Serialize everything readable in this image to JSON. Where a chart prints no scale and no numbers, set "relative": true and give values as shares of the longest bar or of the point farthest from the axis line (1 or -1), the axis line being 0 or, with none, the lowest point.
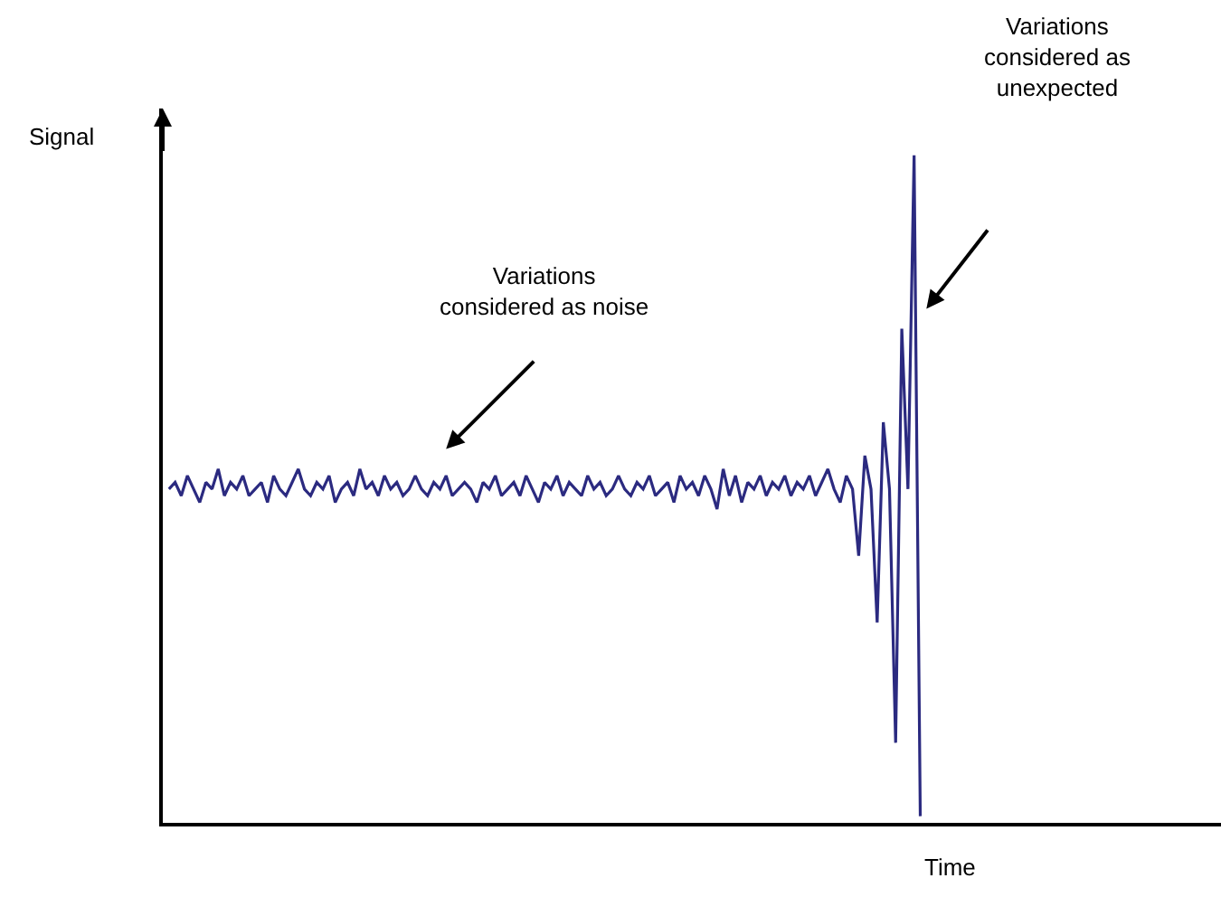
{
  "chart_data": {
    "type": "line",
    "relative": true,
    "xlabel": "Time",
    "ylabel": "Signal",
    "categories": [
      null,
      null,
      null,
      null,
      null,
      null,
      null,
      null,
      null,
      null,
      null,
      null,
      null,
      null,
      null,
      null,
      null,
      null,
      null,
      null,
      null,
      null,
      null,
      null,
      null,
      null,
      null,
      null,
      null,
      null,
      null,
      null,
      null,
      null,
      null,
      null,
      null,
      null,
      null,
      null,
      null,
      null,
      null,
      null,
      null,
      null,
      null,
      null,
      null,
      null,
      null,
      null,
      null,
      null,
      null,
      null,
      null,
      null,
      null,
      null,
      null,
      null,
      null,
      null,
      null,
      null,
      null,
      null,
      null,
      null,
      null,
      null,
      null,
      null,
      null,
      null,
      null,
      null,
      null,
      null,
      null,
      null,
      null,
      null,
      null,
      null,
      null,
      null,
      null,
      null,
      null,
      null,
      null,
      null,
      null,
      null,
      null,
      null,
      null,
      null,
      null,
      null,
      null,
      null,
      null,
      null,
      null,
      null,
      null,
      null,
      null,
      null,
      null,
      null,
      null,
      null,
      null,
      null,
      null,
      null,
      null,
      null,
      null
    ],
    "series": [
      {
        "color": "#2b2a80",
        "values": [
          0.5,
          0.51,
          0.49,
          0.52,
          0.5,
          0.48,
          0.51,
          0.5,
          0.53,
          0.49,
          0.51,
          0.5,
          0.52,
          0.49,
          0.5,
          0.51,
          0.48,
          0.52,
          0.5,
          0.49,
          0.51,
          0.53,
          0.5,
          0.49,
          0.51,
          0.5,
          0.52,
          0.48,
          0.5,
          0.51,
          0.49,
          0.53,
          0.5,
          0.51,
          0.49,
          0.52,
          0.5,
          0.51,
          0.49,
          0.5,
          0.52,
          0.5,
          0.49,
          0.51,
          0.5,
          0.52,
          0.49,
          0.5,
          0.51,
          0.5,
          0.48,
          0.51,
          0.5,
          0.52,
          0.49,
          0.5,
          0.51,
          0.49,
          0.52,
          0.5,
          0.48,
          0.51,
          0.5,
          0.52,
          0.49,
          0.51,
          0.5,
          0.49,
          0.52,
          0.5,
          0.51,
          0.49,
          0.5,
          0.52,
          0.5,
          0.49,
          0.51,
          0.5,
          0.52,
          0.49,
          0.5,
          0.51,
          0.48,
          0.52,
          0.5,
          0.51,
          0.49,
          0.52,
          0.5,
          0.47,
          0.53,
          0.49,
          0.52,
          0.48,
          0.51,
          0.5,
          0.52,
          0.49,
          0.51,
          0.5,
          0.52,
          0.49,
          0.51,
          0.5,
          0.52,
          0.49,
          0.51,
          0.53,
          0.5,
          0.48,
          0.52,
          0.5,
          0.4,
          0.55,
          0.5,
          0.3,
          0.6,
          0.5,
          0.12,
          0.74,
          0.5,
          1.0,
          0.01
        ]
      }
    ],
    "annotations": [
      "Variations\nconsidered as noise",
      "Variations\nconsidered as\nunexpected"
    ]
  }
}
